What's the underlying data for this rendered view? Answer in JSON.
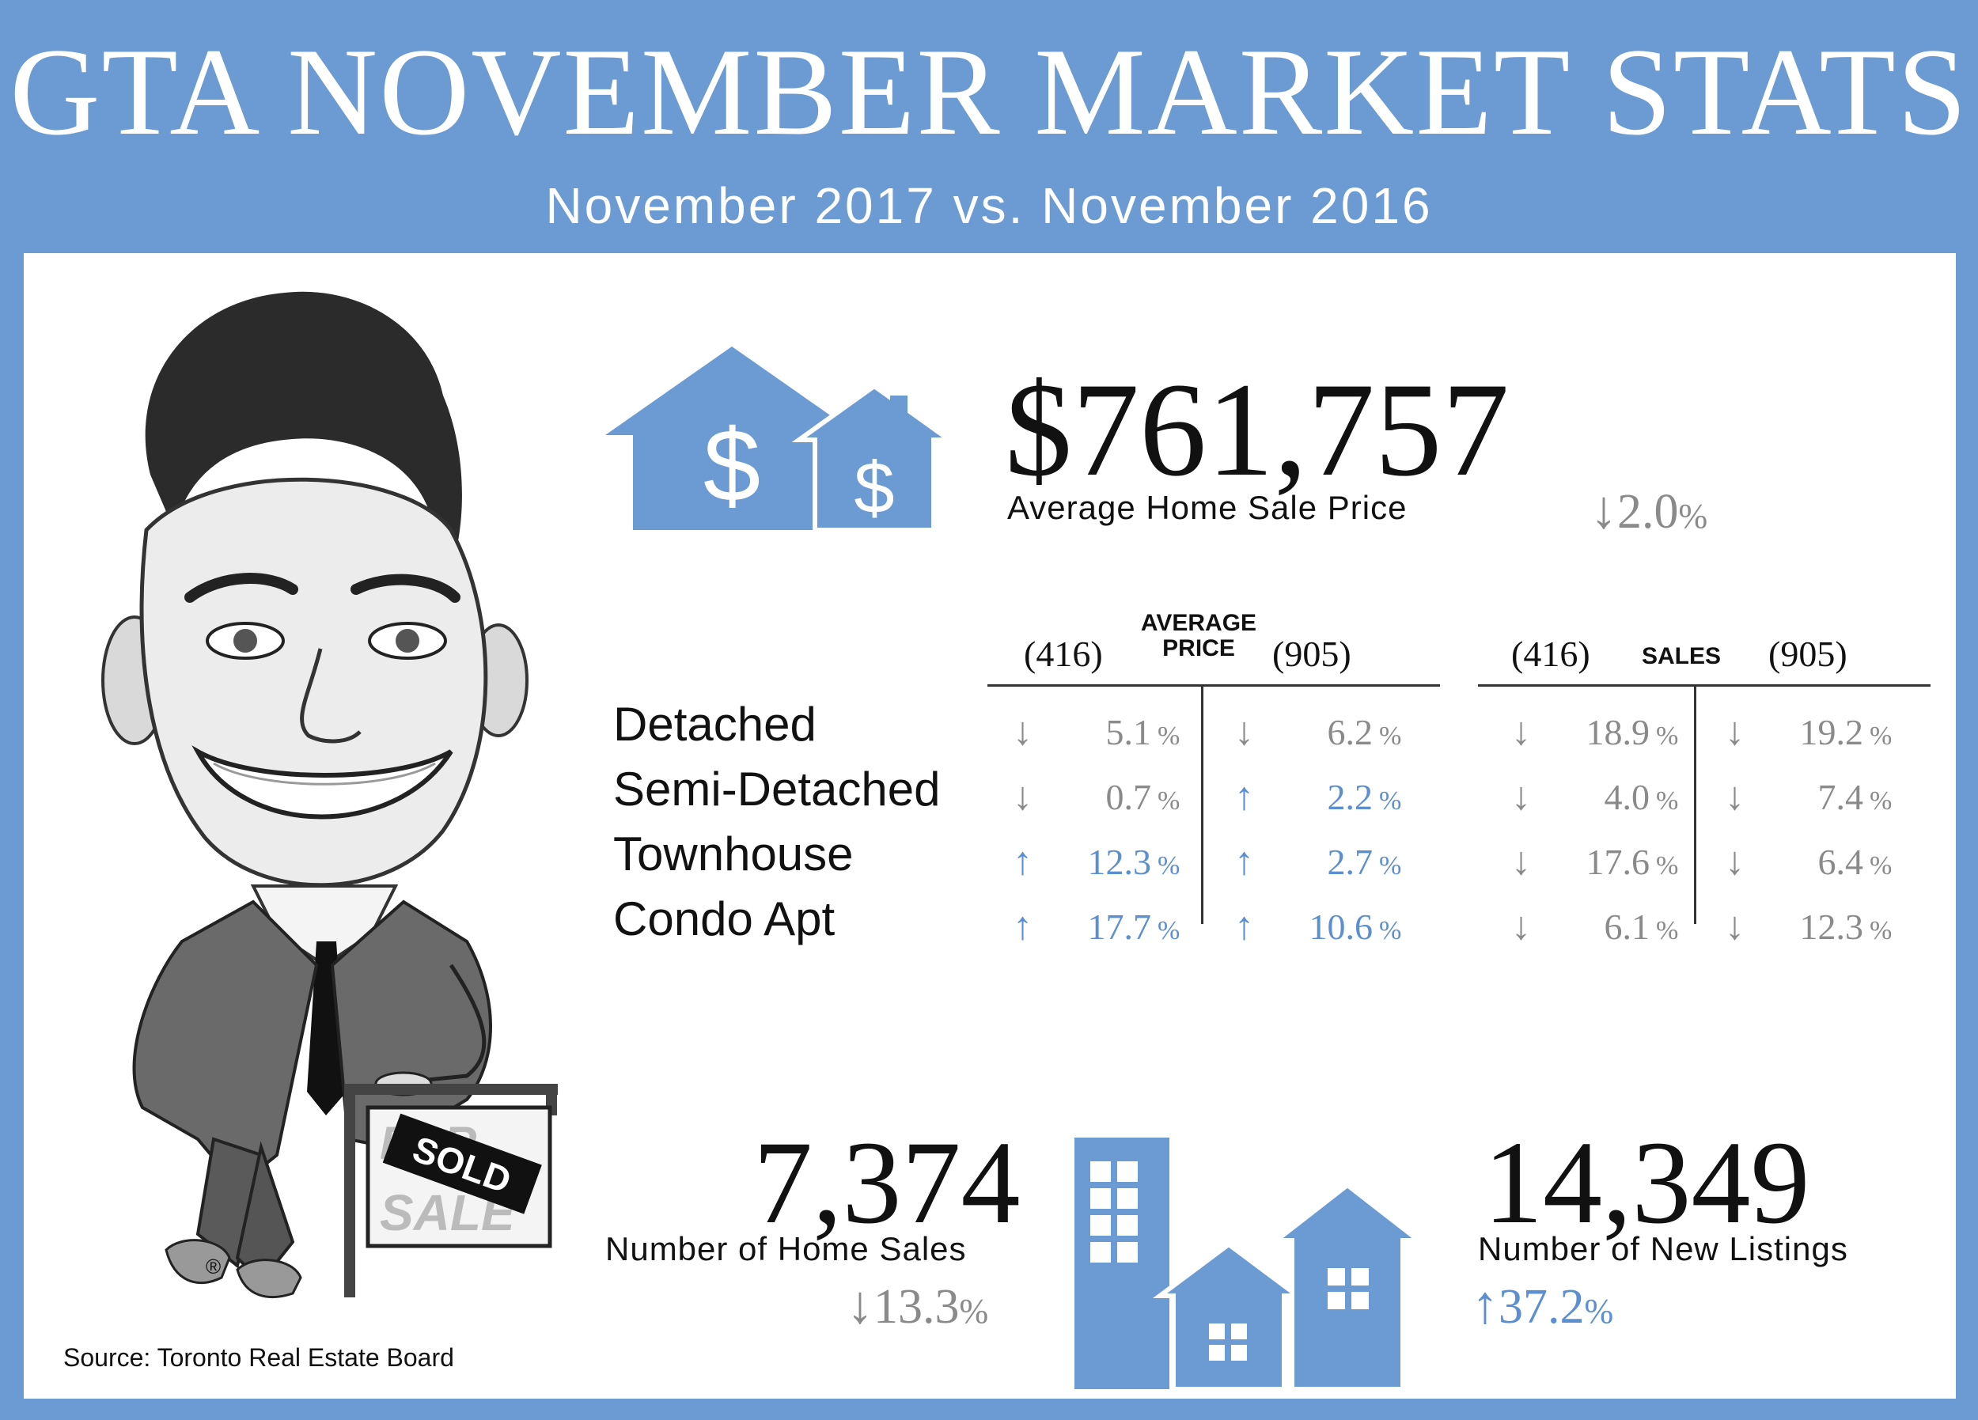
{
  "header": {
    "title": "GTA NOVEMBER MARKET STATS",
    "subtitle": "November 2017 vs. November 2016"
  },
  "avg_price": {
    "value": "$761,757",
    "label": "Average Home Sale Price",
    "change_arrow": "↓",
    "change_value": "2.0",
    "change_pct": "%"
  },
  "table": {
    "avg_price_header": {
      "left": "(416)",
      "title_line1": "AVERAGE",
      "title_line2": "PRICE",
      "right": "(905)"
    },
    "sales_header": {
      "left": "(416)",
      "title": "SALES",
      "right": "(905)"
    },
    "rows": [
      {
        "label": "Detached",
        "price_416": {
          "arrow": "↓",
          "value": "5.1",
          "pct": "%",
          "dir": "down"
        },
        "price_905": {
          "arrow": "↓",
          "value": "6.2",
          "pct": "%",
          "dir": "down"
        },
        "sales_416": {
          "arrow": "↓",
          "value": "18.9",
          "pct": "%",
          "dir": "down"
        },
        "sales_905": {
          "arrow": "↓",
          "value": "19.2",
          "pct": "%",
          "dir": "down"
        }
      },
      {
        "label": "Semi-Detached",
        "price_416": {
          "arrow": "↓",
          "value": "0.7",
          "pct": "%",
          "dir": "down"
        },
        "price_905": {
          "arrow": "↑",
          "value": "2.2",
          "pct": "%",
          "dir": "up"
        },
        "sales_416": {
          "arrow": "↓",
          "value": "4.0",
          "pct": "%",
          "dir": "down"
        },
        "sales_905": {
          "arrow": "↓",
          "value": "7.4",
          "pct": "%",
          "dir": "down"
        }
      },
      {
        "label": "Townhouse",
        "price_416": {
          "arrow": "↑",
          "value": "12.3",
          "pct": "%",
          "dir": "up"
        },
        "price_905": {
          "arrow": "↑",
          "value": "2.7",
          "pct": "%",
          "dir": "up"
        },
        "sales_416": {
          "arrow": "↓",
          "value": "17.6",
          "pct": "%",
          "dir": "down"
        },
        "sales_905": {
          "arrow": "↓",
          "value": "6.4",
          "pct": "%",
          "dir": "down"
        }
      },
      {
        "label": "Condo Apt",
        "price_416": {
          "arrow": "↑",
          "value": "17.7",
          "pct": "%",
          "dir": "up"
        },
        "price_905": {
          "arrow": "↑",
          "value": "10.6",
          "pct": "%",
          "dir": "up"
        },
        "sales_416": {
          "arrow": "↓",
          "value": "6.1",
          "pct": "%",
          "dir": "down"
        },
        "sales_905": {
          "arrow": "↓",
          "value": "12.3",
          "pct": "%",
          "dir": "down"
        }
      }
    ]
  },
  "home_sales": {
    "value": "7,374",
    "label": "Number of Home Sales",
    "change_arrow": "↓",
    "change_value": "13.3",
    "change_pct": "%"
  },
  "new_listings": {
    "value": "14,349",
    "label": "Number of New Listings",
    "change_arrow": "↑",
    "change_value": "37.2",
    "change_pct": "%"
  },
  "caricature": {
    "sign_text_top": "FOR",
    "sign_text_bottom": "SALE",
    "sign_rider": "SOLD",
    "registered_mark": "®"
  },
  "source": "Source: Toronto Real Estate Board",
  "colors": {
    "accent": "#6b9bd2",
    "up": "#5b8fcf",
    "down": "#8a8a8a",
    "text": "#111111"
  },
  "icons": [
    "house-dollar-icon",
    "house-small-dollar-icon",
    "buildings-icon"
  ]
}
